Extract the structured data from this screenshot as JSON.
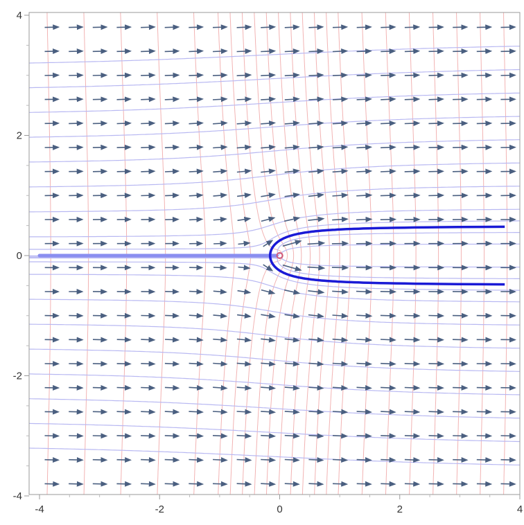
{
  "chart_data": {
    "type": "vector-field",
    "title": "",
    "xlabel": "",
    "ylabel": "",
    "xlim": [
      -4,
      4
    ],
    "ylim": [
      -4,
      4
    ],
    "x_ticks": [
      -4,
      -2,
      0,
      2,
      4
    ],
    "y_ticks": [
      -4,
      -2,
      0,
      2,
      4
    ],
    "x_tick_labels": [
      "-4",
      "-2",
      "0",
      "2",
      "4"
    ],
    "y_tick_labels": [
      "-4",
      "-2",
      "0",
      "2",
      "4"
    ],
    "frame": true,
    "grid": false,
    "legend": "none",
    "field": {
      "description_values": "uniform flow plus point source at origin",
      "uniform_speed": 1,
      "source_strength": 1,
      "source_point": [
        0,
        0
      ],
      "stagnation_point": [
        -1,
        0
      ],
      "arrow_grid_x": [
        -3.8,
        -3.4,
        -3.0,
        -2.6,
        -2.2,
        -1.8,
        -1.4,
        -1.0,
        -0.6,
        -0.2,
        0.2,
        0.6,
        1.0,
        1.4,
        1.8,
        2.2,
        2.6,
        3.0,
        3.4,
        3.8
      ],
      "arrow_grid_y": [
        -3.8,
        -3.4,
        -3.0,
        -2.6,
        -2.2,
        -1.8,
        -1.4,
        -1.0,
        -0.6,
        -0.2,
        0.2,
        0.6,
        1.0,
        1.4,
        1.8,
        2.2,
        2.6,
        3.0,
        3.4,
        3.8
      ]
    },
    "streamline_levels": [
      -3.6,
      -3.2,
      -2.8,
      -2.4,
      -2.0,
      -1.6,
      -1.2,
      -0.8,
      -0.6,
      -0.4,
      -0.2,
      0.2,
      0.4,
      0.6,
      0.8,
      1.2,
      1.6,
      2.0,
      2.4,
      2.8,
      3.2,
      3.6
    ],
    "potential_levels": [
      -3.6,
      -3.0,
      -2.4,
      -1.8,
      -1.2,
      -0.8,
      -0.6,
      -0.4,
      -0.2,
      0.0,
      0.2,
      0.4,
      0.6,
      0.8,
      1.0,
      1.2,
      1.6,
      2.0,
      2.4,
      2.8,
      3.2,
      3.6,
      4.0
    ],
    "dividing_streamline": {
      "stream_value": 0.5,
      "x_range": [
        -1.0,
        4.0
      ],
      "color": "#1a1ad6"
    },
    "negative_axis_line": {
      "x_range": [
        -4,
        -0.05
      ],
      "y": 0,
      "color": "#8a8ef0"
    },
    "colors": {
      "arrows": "#4a5f80",
      "streamlines": "#b8b8f2",
      "potential_lines": "#f2b3b3",
      "dividing_streamline": "#1a1ad6",
      "axis_line": "#8a8ef0",
      "source_marker": "#d05a7a",
      "frame": "#999999",
      "tick_labels": "#333333"
    }
  }
}
